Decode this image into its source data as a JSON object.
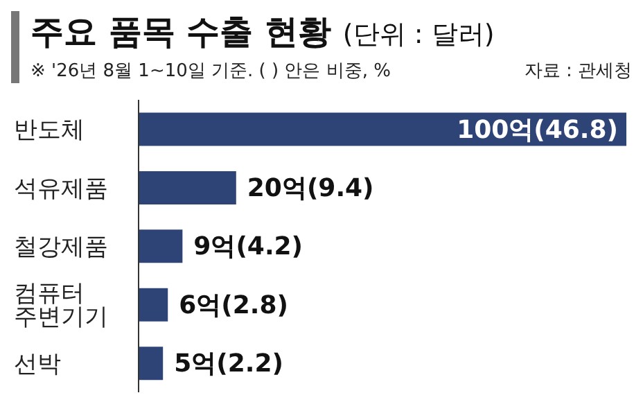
{
  "chart_data": {
    "type": "bar",
    "orientation": "horizontal",
    "title": "주요 품목 수출 현황 (단위 : 달러)",
    "subtitle": "※ '26년 8월 1~10일 기준. ( ) 안은 비중, %",
    "annotations": [
      "자료 : 관세청"
    ],
    "categories": [
      "반도체",
      "석유제품",
      "철강제품",
      "컴퓨터 주변기기",
      "선박"
    ],
    "values": [
      100,
      20,
      9,
      6,
      5
    ],
    "value_labels": [
      "100억(46.8)",
      "20억(9.4)",
      "9억(4.2)",
      "6억(2.8)",
      "5억(2.2)"
    ],
    "color": "#2e4477"
  }
}
